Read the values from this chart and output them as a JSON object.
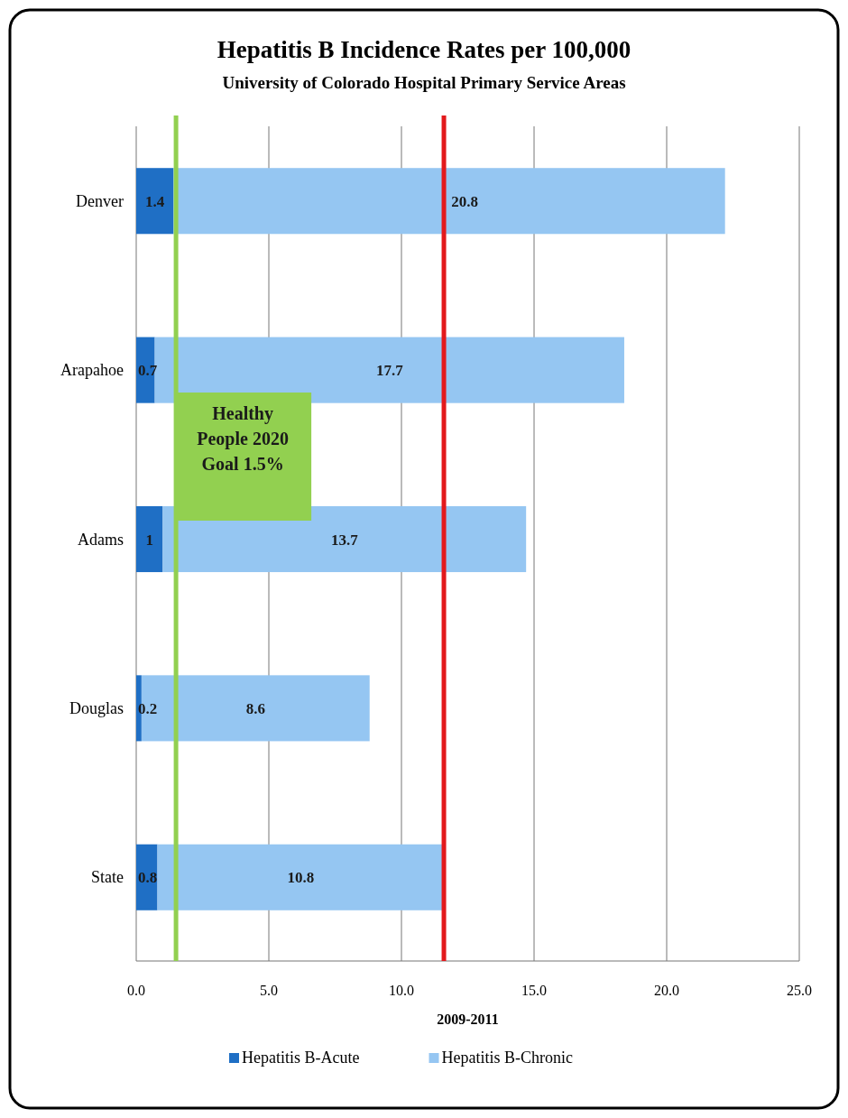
{
  "chart_data": {
    "type": "bar",
    "orientation": "horizontal",
    "stacked": true,
    "title": "Hepatitis B Incidence Rates per 100,000",
    "subtitle": "University of Colorado Hospital Primary Service Areas",
    "xlabel": "2009-2011",
    "categories": [
      "Denver",
      "Arapahoe",
      "Adams",
      "Douglas",
      "State"
    ],
    "series": [
      {
        "name": "Hepatitis B-Acute",
        "color": "#1f6fc5",
        "values": [
          1.4,
          0.7,
          1,
          0.2,
          0.8
        ]
      },
      {
        "name": "Hepatitis B-Chronic",
        "color": "#95c6f2",
        "values": [
          20.8,
          17.7,
          13.7,
          8.6,
          10.8
        ]
      }
    ],
    "xlim": [
      0,
      25
    ],
    "xticks": [
      {
        "value": 0,
        "label": "0.0"
      },
      {
        "value": 5,
        "label": "5.0"
      },
      {
        "value": 10,
        "label": "10.0"
      },
      {
        "value": 15,
        "label": "15.0"
      },
      {
        "value": 20,
        "label": "20.0"
      },
      {
        "value": 25,
        "label": "25.0"
      }
    ],
    "grid": "x",
    "legend": "bottom",
    "data_labels": true,
    "ref_lines": [
      {
        "axis": "x",
        "value": 1.5,
        "label": "Healthy People 2020 Goal 1.5%",
        "color": "#92d050"
      },
      {
        "axis": "x",
        "value": 11.6,
        "color": "#e3191c"
      }
    ]
  }
}
